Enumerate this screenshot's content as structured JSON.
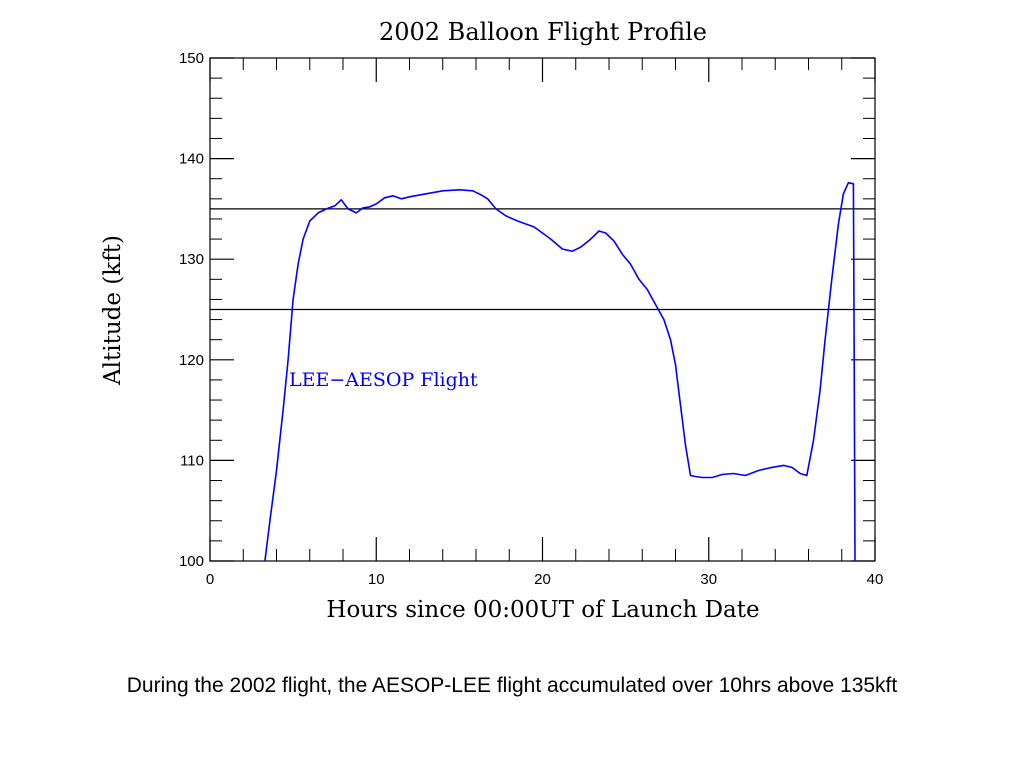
{
  "chart_data": {
    "type": "line",
    "title": "2002 Balloon Flight Profile",
    "xlabel": "Hours since 00:00UT of Launch Date",
    "ylabel": "Altitude (kft)",
    "xlim": [
      0,
      40
    ],
    "ylim": [
      100,
      150
    ],
    "x_ticks": [
      0,
      10,
      20,
      30,
      40
    ],
    "y_ticks": [
      100,
      110,
      120,
      130,
      140,
      150
    ],
    "reference_lines_y": [
      135,
      125
    ],
    "annotation": "LEE−AESOP Flight",
    "grid": false,
    "series": [
      {
        "color": "#0000ff",
        "x": [
          3.3,
          3.6,
          4.0,
          4.4,
          4.7,
          5.0,
          5.3,
          5.6,
          6.0,
          6.5,
          7.0,
          7.5,
          7.9,
          8.3,
          8.8,
          9.2,
          9.6,
          10.0,
          10.5,
          11.0,
          11.5,
          12.0,
          13.0,
          14.0,
          15.0,
          15.8,
          16.3,
          16.7,
          17.2,
          17.8,
          18.5,
          19.5,
          20.5,
          21.2,
          21.8,
          22.3,
          22.9,
          23.4,
          23.8,
          24.3,
          24.8,
          25.3,
          25.8,
          26.3,
          26.8,
          27.3,
          27.7,
          28.0,
          28.3,
          28.6,
          28.9,
          29.2,
          29.6,
          30.2,
          30.8,
          31.5,
          32.2,
          33.0,
          33.8,
          34.5,
          35.0,
          35.5,
          35.9,
          36.3,
          36.7,
          37.0,
          37.4,
          37.8,
          38.1,
          38.4,
          38.7,
          38.75,
          38.8
        ],
        "values": [
          100.0,
          104.0,
          109.0,
          115.0,
          120.0,
          126.0,
          129.5,
          132.0,
          133.8,
          134.6,
          135.0,
          135.3,
          135.9,
          135.0,
          134.6,
          135.1,
          135.2,
          135.5,
          136.1,
          136.3,
          136.0,
          136.2,
          136.5,
          136.8,
          136.9,
          136.8,
          136.4,
          136.0,
          135.0,
          134.3,
          133.8,
          133.2,
          132.0,
          131.0,
          130.8,
          131.2,
          132.0,
          132.8,
          132.6,
          131.8,
          130.5,
          129.5,
          128.0,
          127.0,
          125.5,
          124.0,
          122.0,
          119.5,
          115.5,
          111.5,
          108.5,
          108.4,
          108.3,
          108.3,
          108.6,
          108.7,
          108.5,
          109.0,
          109.3,
          109.5,
          109.3,
          108.7,
          108.5,
          112.0,
          117.0,
          122.0,
          128.0,
          133.5,
          136.5,
          137.6,
          137.5,
          120.0,
          100.0
        ]
      }
    ]
  },
  "caption": "During the 2002 flight, the AESOP-LEE flight accumulated over 10hrs above 135kft"
}
